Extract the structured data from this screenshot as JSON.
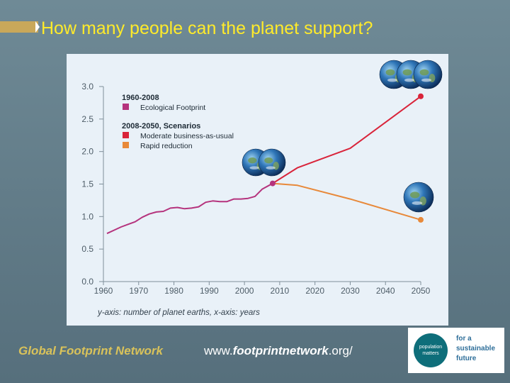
{
  "slide": {
    "title": "How many people can the planet support?",
    "footer_org": "Global Footprint Network",
    "url_prefix": "www.",
    "url_bold": "footprintnetwork",
    "url_suffix": ".org/",
    "logo_name": "population matters",
    "logo_tagline": [
      "for a",
      "sustainable",
      "future"
    ]
  },
  "colors": {
    "title": "#ffeb2a",
    "footprint": "#b5337d",
    "moderate": "#d9243a",
    "rapid": "#e8893a",
    "axis": "#7f8f9a"
  },
  "chart_data": {
    "type": "line",
    "xlabel": "y-axis: number of planet earths, x-axis: years",
    "xlim": [
      1960,
      2050
    ],
    "ylim": [
      0,
      3.0
    ],
    "x_ticks": [
      1960,
      1970,
      1980,
      1990,
      2000,
      2010,
      2020,
      2030,
      2040,
      2050
    ],
    "y_ticks": [
      "0.0",
      "0.5",
      "1.0",
      "1.5",
      "2.0",
      "2.5",
      "3.0"
    ],
    "legend": {
      "group1_title": "1960-2008",
      "group1_item": "Ecological Footprint",
      "group2_title": "2008-2050, Scenarios",
      "group2_items": [
        "Moderate business-as-usual",
        "Rapid reduction"
      ]
    },
    "series": [
      {
        "name": "Ecological Footprint",
        "x": [
          1961,
          1963,
          1965,
          1967,
          1969,
          1971,
          1973,
          1975,
          1977,
          1979,
          1981,
          1983,
          1985,
          1987,
          1989,
          1991,
          1993,
          1995,
          1997,
          1999,
          2001,
          2003,
          2005,
          2008
        ],
        "y": [
          0.74,
          0.79,
          0.84,
          0.88,
          0.92,
          0.99,
          1.04,
          1.07,
          1.08,
          1.13,
          1.14,
          1.12,
          1.13,
          1.15,
          1.22,
          1.24,
          1.23,
          1.23,
          1.27,
          1.27,
          1.28,
          1.31,
          1.42,
          1.51
        ]
      },
      {
        "name": "Moderate business-as-usual",
        "x": [
          2008,
          2015,
          2030,
          2050
        ],
        "y": [
          1.51,
          1.75,
          2.05,
          2.85
        ]
      },
      {
        "name": "Rapid reduction",
        "x": [
          2008,
          2015,
          2030,
          2050
        ],
        "y": [
          1.51,
          1.48,
          1.27,
          0.95
        ]
      }
    ]
  }
}
